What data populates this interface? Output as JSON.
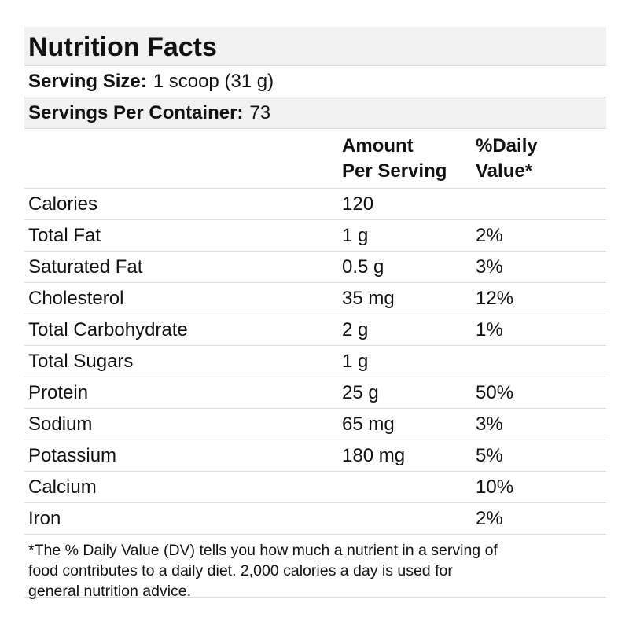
{
  "title": "Nutrition Facts",
  "serving_size": {
    "label": "Serving Size:",
    "value": "1 scoop (31 g)"
  },
  "servings_per_container": {
    "label": "Servings Per Container:",
    "value": "73"
  },
  "columns": {
    "amount_line1": "Amount",
    "amount_line2": "Per Serving",
    "dv_line1": "%Daily",
    "dv_line2": "Value*"
  },
  "nutrients": [
    {
      "name": "Calories",
      "amount": "120",
      "dv": ""
    },
    {
      "name": "Total Fat",
      "amount": "1 g",
      "dv": "2%"
    },
    {
      "name": "Saturated Fat",
      "amount": "0.5 g",
      "dv": "3%"
    },
    {
      "name": "Cholesterol",
      "amount": "35 mg",
      "dv": "12%"
    },
    {
      "name": "Total Carbohydrate",
      "amount": "2 g",
      "dv": "1%"
    },
    {
      "name": "Total Sugars",
      "amount": "1 g",
      "dv": ""
    },
    {
      "name": "Protein",
      "amount": "25 g",
      "dv": "50%"
    },
    {
      "name": "Sodium",
      "amount": "65 mg",
      "dv": "3%"
    },
    {
      "name": "Potassium",
      "amount": "180 mg",
      "dv": "5%"
    },
    {
      "name": "Calcium",
      "amount": "",
      "dv": "10%"
    },
    {
      "name": "Iron",
      "amount": "",
      "dv": "2%"
    }
  ],
  "footnote": "*The % Daily Value (DV) tells you how much a nutrient in a serving of food contributes to a daily diet. 2,000 calories a day is used for general nutrition advice.",
  "colors": {
    "header_bg": "#f1f1f1",
    "divider": "#dddddd",
    "text": "#111111"
  }
}
